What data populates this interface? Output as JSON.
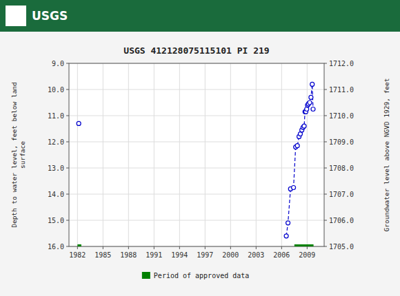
{
  "chart_data": {
    "type": "line",
    "title": "USGS 412128075115101 PI  219",
    "annotations": [
      {
        "text": "USGS"
      }
    ],
    "x_label": null,
    "y_label": "Depth to water level, feet below land\nsurface",
    "y2_label": "Groundwater level above NGVD 1929, feet",
    "xlim": [
      1981,
      2011
    ],
    "xticks": [
      1982,
      1985,
      1988,
      1991,
      1994,
      1997,
      2000,
      2003,
      2006,
      2009
    ],
    "ylim": [
      16.0,
      9.0
    ],
    "yticks": [
      {
        "value": 9.0,
        "label": "9.0"
      },
      {
        "value": 10.0,
        "label": "10.0"
      },
      {
        "value": 11.0,
        "label": "11.0"
      },
      {
        "value": 12.0,
        "label": "12.0"
      },
      {
        "value": 13.0,
        "label": "13.0"
      },
      {
        "value": 14.0,
        "label": "14.0"
      },
      {
        "value": 15.0,
        "label": "15.0"
      },
      {
        "value": 16.0,
        "label": "16.0"
      }
    ],
    "y2lim": [
      1705.0,
      1712.0
    ],
    "y2ticks": [
      {
        "value": 1705.0,
        "label": "1705.0"
      },
      {
        "value": 1706.0,
        "label": "1706.0"
      },
      {
        "value": 1707.0,
        "label": "1707.0"
      },
      {
        "value": 1708.0,
        "label": "1708.0"
      },
      {
        "value": 1709.0,
        "label": "1709.0"
      },
      {
        "value": 1710.0,
        "label": "1710.0"
      },
      {
        "value": 1711.0,
        "label": "1711.0"
      },
      {
        "value": 1712.0,
        "label": "1712.0"
      }
    ],
    "grid": true,
    "legend": "bottom",
    "series": [
      {
        "type": "scatter",
        "marker": "circle",
        "color": "#0000cc",
        "x": [
          1982.15
        ],
        "values": [
          11.3
        ]
      },
      {
        "type": "line",
        "line_style": "dashed",
        "marker": "circle",
        "color": "#0000cc",
        "x": [
          2006.55,
          2006.75,
          2007.05,
          2007.4,
          2007.65,
          2007.85,
          2008.05,
          2008.2,
          2008.38,
          2008.52,
          2008.65,
          2008.75,
          2008.85,
          2008.95,
          2009.05,
          2009.15,
          2009.3,
          2009.45,
          2009.6,
          2009.7
        ],
        "values": [
          15.6,
          15.1,
          13.8,
          13.75,
          12.2,
          12.15,
          11.8,
          11.7,
          11.55,
          11.45,
          11.4,
          10.85,
          10.85,
          10.75,
          10.6,
          10.55,
          10.5,
          10.3,
          9.8,
          10.75
        ]
      },
      {
        "type": "range_bar",
        "name": "Period of approved data",
        "color": "#008000",
        "x": [
          [
            1982.0,
            1982.45
          ],
          [
            2007.5,
            2009.75
          ]
        ],
        "values": [
          16.0,
          16.0
        ]
      }
    ]
  }
}
